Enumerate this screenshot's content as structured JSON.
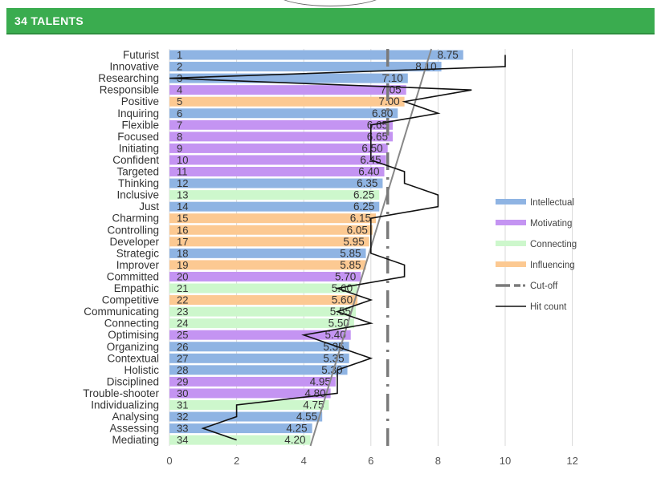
{
  "header": {
    "title": "34 TALENTS"
  },
  "colors": {
    "Intellectual": "#8fb4e3",
    "Motivating": "#c494f2",
    "Connecting": "#cdf7cc",
    "Influencing": "#fcc992",
    "cutoff": "#7a7a7a",
    "hitcount": "#111111",
    "trend": "#888888"
  },
  "chart_data": {
    "type": "bar",
    "orientation": "horizontal",
    "xlim": [
      0,
      12
    ],
    "xticks": [
      0,
      2,
      4,
      6,
      8,
      10,
      12
    ],
    "grid": "vertical",
    "legend_position": "right",
    "categories": [
      "Futurist",
      "Innovative",
      "Researching",
      "Responsible",
      "Positive",
      "Inquiring",
      "Flexible",
      "Focused",
      "Initiating",
      "Confident",
      "Targeted",
      "Thinking",
      "Inclusive",
      "Just",
      "Charming",
      "Controlling",
      "Developer",
      "Strategic",
      "Improver",
      "Committed",
      "Empathic",
      "Competitive",
      "Communicating",
      "Connecting",
      "Optimising",
      "Organizing",
      "Contextual",
      "Holistic",
      "Disciplined",
      "Trouble-shooter",
      "Individualizing",
      "Analysing",
      "Assessing",
      "Mediating"
    ],
    "ranks": [
      1,
      2,
      3,
      4,
      5,
      6,
      7,
      8,
      9,
      10,
      11,
      12,
      13,
      14,
      15,
      16,
      17,
      18,
      19,
      20,
      21,
      22,
      23,
      24,
      25,
      26,
      27,
      28,
      29,
      30,
      31,
      32,
      33,
      34
    ],
    "values": [
      8.75,
      8.1,
      7.1,
      7.05,
      7.0,
      6.8,
      6.65,
      6.65,
      6.5,
      6.45,
      6.4,
      6.35,
      6.25,
      6.25,
      6.15,
      6.05,
      5.95,
      5.85,
      5.85,
      5.7,
      5.6,
      5.6,
      5.55,
      5.5,
      5.4,
      5.35,
      5.35,
      5.3,
      4.95,
      4.8,
      4.75,
      4.55,
      4.25,
      4.2
    ],
    "value_labels": [
      "8.75",
      "8.10",
      "7.10",
      "7.05",
      "7.00",
      "6.80",
      "6.65",
      "6.65",
      "6.50",
      "6.45",
      "6.40",
      "6.35",
      "6.25",
      "6.25",
      "6.15",
      "6.05",
      "5.95",
      "5.85",
      "5.85",
      "5.70",
      "5.60",
      "5.60",
      "5.55",
      "5.50",
      "5.40",
      "5.35",
      "5.35",
      "5.30",
      "4.95",
      "4.80",
      "4.75",
      "4.55",
      "4.25",
      "4.20"
    ],
    "groups": [
      "Intellectual",
      "Intellectual",
      "Intellectual",
      "Motivating",
      "Influencing",
      "Intellectual",
      "Motivating",
      "Motivating",
      "Motivating",
      "Motivating",
      "Motivating",
      "Intellectual",
      "Connecting",
      "Intellectual",
      "Influencing",
      "Influencing",
      "Influencing",
      "Intellectual",
      "Influencing",
      "Motivating",
      "Connecting",
      "Influencing",
      "Connecting",
      "Connecting",
      "Motivating",
      "Intellectual",
      "Intellectual",
      "Intellectual",
      "Motivating",
      "Motivating",
      "Connecting",
      "Intellectual",
      "Intellectual",
      "Connecting"
    ],
    "cutoff": 6.5,
    "hit_count": [
      10,
      10,
      0,
      9,
      7,
      8,
      6,
      6,
      6,
      6,
      7,
      7,
      8,
      8,
      6,
      6,
      6,
      6,
      7,
      7,
      5,
      6,
      5,
      6,
      4,
      5,
      6,
      5,
      5,
      5,
      2,
      2,
      1,
      2
    ],
    "trend_line": {
      "from": [
        7.8,
        1
      ],
      "to": [
        4.2,
        34
      ]
    },
    "legend": [
      {
        "key": "Intellectual",
        "label": "Intellectual",
        "kind": "bar"
      },
      {
        "key": "Motivating",
        "label": "Motivating",
        "kind": "bar"
      },
      {
        "key": "Connecting",
        "label": "Connecting",
        "kind": "bar"
      },
      {
        "key": "Influencing",
        "label": "Influencing",
        "kind": "bar"
      },
      {
        "key": "cutoff",
        "label": "Cut-off",
        "kind": "dashdot"
      },
      {
        "key": "hitcount",
        "label": "Hit count",
        "kind": "line"
      }
    ]
  }
}
